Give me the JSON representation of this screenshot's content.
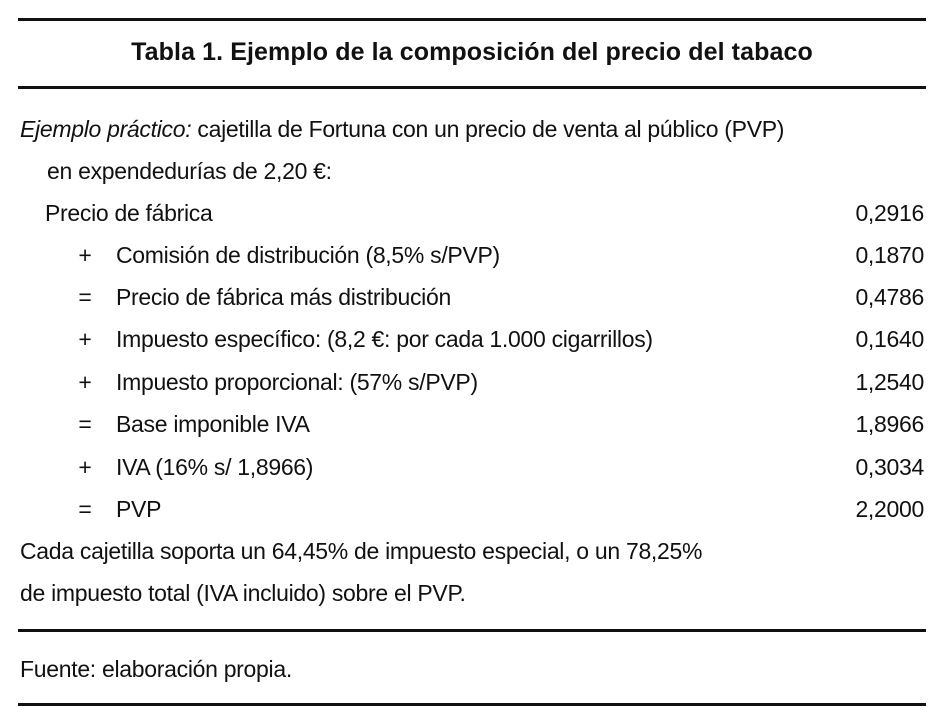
{
  "table": {
    "title": "Tabla 1. Ejemplo de la composición del precio del tabaco",
    "intro": {
      "italic_prefix": "Ejemplo práctico:",
      "line1_rest": " cajetilla de Fortuna con un precio de venta al público (PVP)",
      "line2": "en expendedurías de 2,20 €:"
    },
    "rows": [
      {
        "op": "",
        "label": "Precio de fábrica",
        "value": "0,2916"
      },
      {
        "op": "+",
        "label": "Comisión de distribución (8,5% s/PVP)",
        "value": "0,1870"
      },
      {
        "op": "=",
        "label": "Precio de fábrica más distribución",
        "value": "0,4786"
      },
      {
        "op": "+",
        "label": "Impuesto específico: (8,2 €: por cada 1.000 cigarrillos)",
        "value": "0,1640"
      },
      {
        "op": "+",
        "label": "Impuesto proporcional: (57% s/PVP)",
        "value": "1,2540"
      },
      {
        "op": "=",
        "label": "Base imponible IVA",
        "value": "1,8966"
      },
      {
        "op": "+",
        "label": "IVA (16% s/ 1,8966)",
        "value": "0,3034"
      },
      {
        "op": "=",
        "label": "PVP",
        "value": "2,2000"
      }
    ],
    "summary": {
      "line1": "Cada cajetilla soporta un 64,45% de impuesto especial, o un 78,25%",
      "line2": "de impuesto total (IVA incluido) sobre el PVP."
    },
    "source": "Fuente: elaboración propia."
  }
}
